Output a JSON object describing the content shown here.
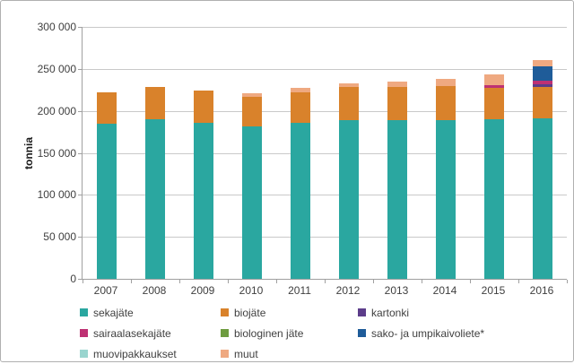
{
  "yaxis_title": "tonnia",
  "chart_data": {
    "type": "bar",
    "stacked": true,
    "title": "",
    "xlabel": "",
    "ylabel": "tonnia",
    "ylim": [
      0,
      300000
    ],
    "ytick_step": 50000,
    "ytick_labels": [
      "0",
      "50 000",
      "100 000",
      "150 000",
      "200 000",
      "250 000",
      "300 000"
    ],
    "grid": true,
    "legend_position": "bottom",
    "categories": [
      "2007",
      "2008",
      "2009",
      "2010",
      "2011",
      "2012",
      "2013",
      "2014",
      "2015",
      "2016"
    ],
    "series": [
      {
        "name": "sekajäte",
        "color": "#2AA7A0",
        "values": [
          185000,
          190000,
          186000,
          181000,
          186000,
          189000,
          189000,
          189000,
          190000,
          191000
        ]
      },
      {
        "name": "biojäte",
        "color": "#D9822B",
        "values": [
          37000,
          39000,
          38000,
          36000,
          36000,
          39000,
          39000,
          41000,
          37000,
          37000
        ]
      },
      {
        "name": "kartonki",
        "color": "#5C3D8A",
        "values": [
          0,
          0,
          0,
          0,
          0,
          0,
          0,
          0,
          0,
          4000
        ]
      },
      {
        "name": "sairaalasekajäte",
        "color": "#BE3173",
        "values": [
          0,
          0,
          0,
          0,
          0,
          0,
          0,
          0,
          4000,
          4000
        ]
      },
      {
        "name": "biologinen jäte",
        "color": "#6E9C40",
        "values": [
          0,
          0,
          0,
          0,
          0,
          0,
          0,
          0,
          0,
          0
        ]
      },
      {
        "name": "sako- ja umpikaivoliete*",
        "color": "#1F5C99",
        "values": [
          0,
          0,
          0,
          0,
          0,
          0,
          0,
          0,
          0,
          17000
        ]
      },
      {
        "name": "muovipakkaukset",
        "color": "#9AD5CF",
        "values": [
          0,
          0,
          0,
          0,
          0,
          0,
          0,
          0,
          0,
          0
        ]
      },
      {
        "name": "muut",
        "color": "#EFA981",
        "values": [
          0,
          0,
          0,
          4000,
          5000,
          5000,
          7000,
          8000,
          12000,
          8000
        ]
      }
    ],
    "totals": [
      222000,
      229000,
      224000,
      221000,
      227000,
      233000,
      235000,
      238000,
      243000,
      261000
    ]
  }
}
